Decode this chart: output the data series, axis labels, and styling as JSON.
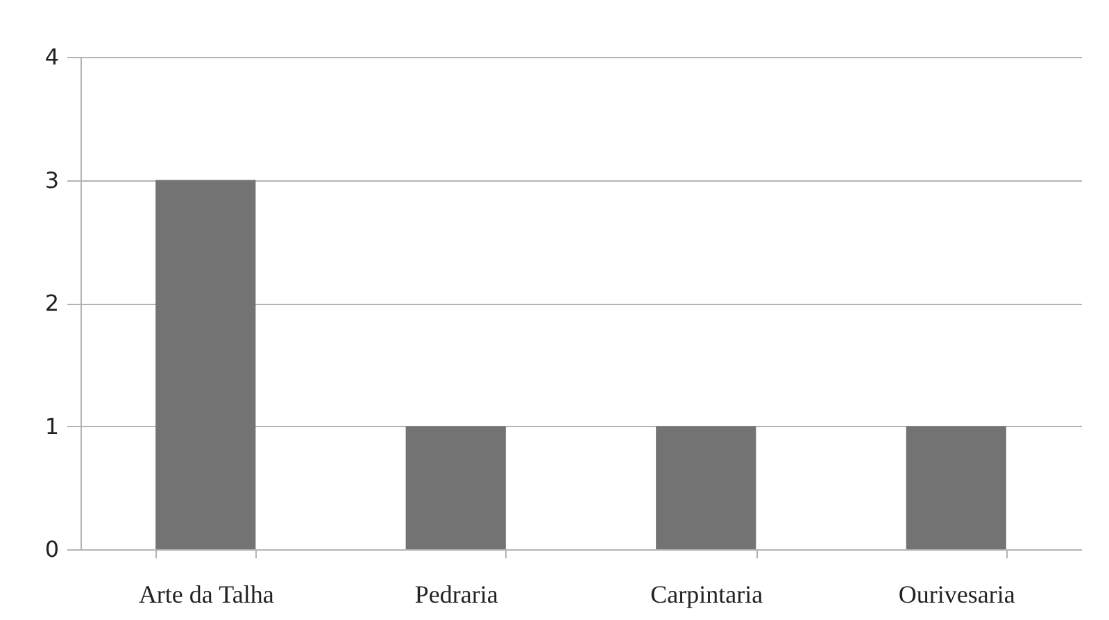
{
  "chart_data": {
    "type": "bar",
    "categories": [
      "Arte da Talha",
      "Pedraria",
      "Carpintaria",
      "Ourivesaria"
    ],
    "values": [
      3,
      1,
      1,
      1
    ],
    "color": "#737373",
    "ylim": [
      0,
      4
    ],
    "yticks": [
      0,
      1,
      2,
      3,
      4
    ],
    "grid": "y"
  }
}
